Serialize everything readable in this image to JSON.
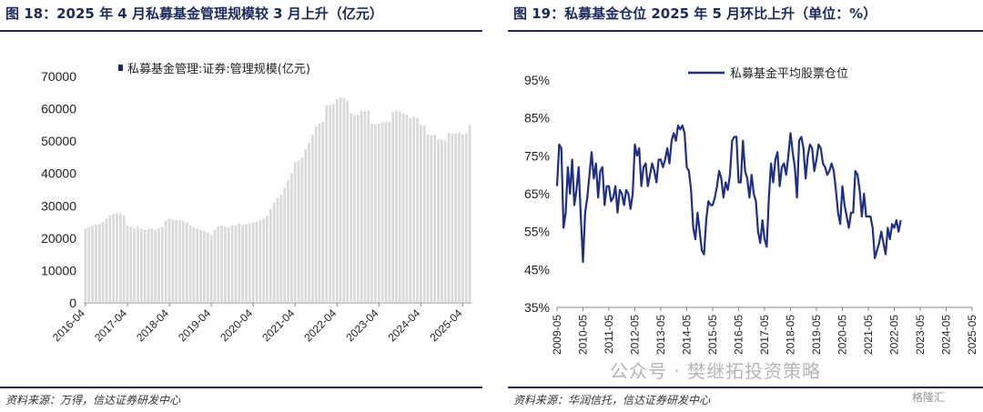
{
  "left": {
    "title": "图 18：2025 年 4 月私募基金管理规模较 3 月上升（亿元）",
    "source": "资料来源：万得，信达证券研发中心"
  },
  "right": {
    "title": "图 19：私募基金仓位 2025 年 5 月环比上升（单位：%）",
    "source": "资料来源：华润信托，信达证券研发中心"
  },
  "watermark": {
    "text": "公众号 · 樊继拓投资策略",
    "logo": "格隆汇"
  },
  "chart_data": [
    {
      "type": "bar",
      "series_name": "私募基金管理:证券:管理规模(亿元)",
      "x_start": "2016-04",
      "x_ticks": [
        "2016-04",
        "2017-04",
        "2018-04",
        "2019-04",
        "2020-04",
        "2021-04",
        "2022-04",
        "2023-04",
        "2024-04",
        "2025-04"
      ],
      "y_ticks": [
        "0",
        "10000",
        "20000",
        "30000",
        "40000",
        "50000",
        "60000",
        "70000"
      ],
      "ylim": [
        0,
        70000
      ],
      "color": "#d9d9d9",
      "values": [
        23000,
        23500,
        24000,
        24200,
        24500,
        25000,
        26000,
        27000,
        27500,
        27800,
        27500,
        27000,
        24000,
        23500,
        23000,
        23500,
        23000,
        22500,
        22800,
        23000,
        22500,
        23000,
        23500,
        25500,
        26000,
        25800,
        25600,
        25500,
        25200,
        24800,
        24000,
        23500,
        23000,
        22600,
        22200,
        21800,
        21000,
        22500,
        23600,
        23800,
        23500,
        23400,
        23900,
        24000,
        24500,
        24200,
        24300,
        24600,
        24800,
        25200,
        25600,
        26000,
        27000,
        29000,
        31000,
        32500,
        33500,
        35500,
        38000,
        40000,
        43500,
        44000,
        45000,
        47500,
        49500,
        52000,
        54500,
        55500,
        56000,
        61000,
        61200,
        61500,
        63000,
        63500,
        63200,
        62500,
        58500,
        58000,
        58200,
        59500,
        59300,
        59400,
        55500,
        55200,
        55400,
        55800,
        56000,
        55900,
        59000,
        59300,
        59000,
        58600,
        58200,
        57000,
        57500,
        57200,
        55000,
        54800,
        52000,
        51800,
        52000,
        50500,
        50400,
        50200,
        52500,
        52400,
        52300,
        52500,
        52000,
        52400,
        55000
      ]
    },
    {
      "type": "line",
      "series_name": "私募基金平均股票仓位",
      "x_start": "2009-05",
      "x_ticks": [
        "2009-05",
        "2010-05",
        "2011-05",
        "2012-05",
        "2013-05",
        "2014-05",
        "2015-05",
        "2016-05",
        "2017-05",
        "2018-05",
        "2019-05",
        "2020-05",
        "2021-05",
        "2022-05",
        "2023-05",
        "2024-05",
        "2025-05"
      ],
      "y_ticks": [
        "35%",
        "45%",
        "55%",
        "65%",
        "75%",
        "85%",
        "95%"
      ],
      "ylim": [
        35,
        95
      ],
      "color": "#1f2f86",
      "values": [
        67,
        78,
        77,
        56,
        60,
        72,
        65,
        74,
        62,
        66,
        72,
        59,
        47,
        60,
        64,
        70,
        76,
        69,
        73,
        64,
        71,
        72,
        62,
        67,
        67,
        63,
        64,
        67,
        60,
        66,
        65,
        62,
        66,
        65,
        61,
        65,
        78,
        75,
        77,
        67,
        72,
        73,
        67,
        70,
        73,
        71,
        68,
        74,
        74,
        72,
        74,
        77,
        73,
        79,
        81,
        79,
        83,
        82,
        83,
        81,
        72,
        71,
        66,
        56,
        53,
        60,
        55,
        50,
        49,
        58,
        63,
        62,
        62,
        64,
        67,
        71,
        69,
        64,
        68,
        66,
        70,
        79,
        80,
        80,
        68,
        68,
        79,
        71,
        69,
        64,
        70,
        65,
        63,
        55,
        52,
        58,
        53,
        51,
        64,
        73,
        68,
        74,
        76,
        67,
        72,
        73,
        70,
        75,
        81,
        76,
        72,
        64,
        79,
        80,
        77,
        69,
        75,
        78,
        77,
        71,
        74,
        78,
        77,
        73,
        72,
        70,
        71,
        73,
        71,
        66,
        60,
        57,
        67,
        62,
        59,
        56,
        60,
        60,
        71,
        70,
        66,
        59,
        65,
        59,
        59,
        59,
        56,
        48,
        50,
        52,
        55,
        52,
        49,
        56,
        53,
        57,
        56,
        58,
        55,
        58
      ]
    }
  ]
}
